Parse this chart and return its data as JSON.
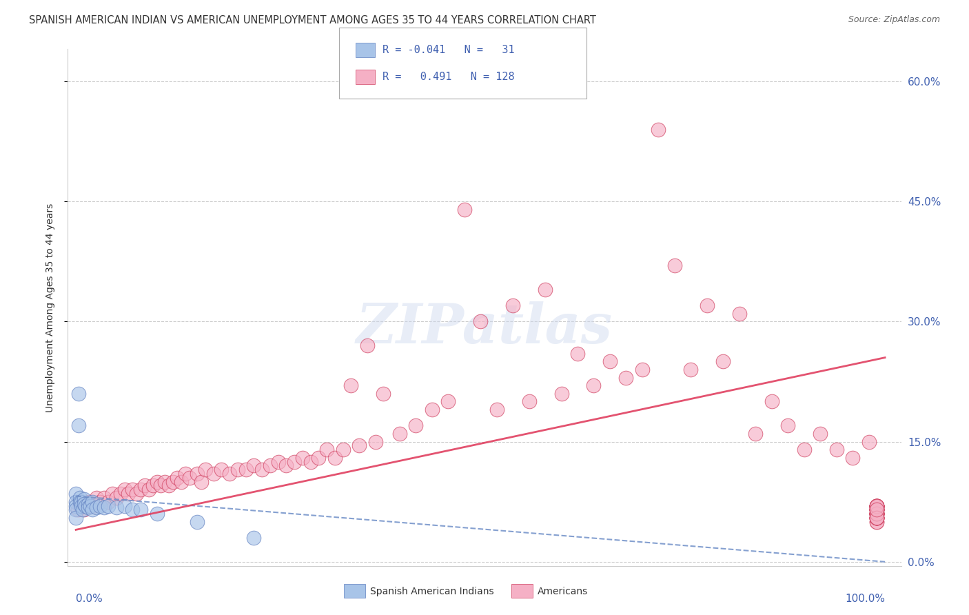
{
  "title": "SPANISH AMERICAN INDIAN VS AMERICAN UNEMPLOYMENT AMONG AGES 35 TO 44 YEARS CORRELATION CHART",
  "source": "Source: ZipAtlas.com",
  "ylabel": "Unemployment Among Ages 35 to 44 years",
  "ylabel_ticks": [
    "0.0%",
    "15.0%",
    "30.0%",
    "45.0%",
    "60.0%"
  ],
  "ylabel_tick_vals": [
    0.0,
    0.15,
    0.3,
    0.45,
    0.6
  ],
  "xlim": [
    -0.01,
    1.02
  ],
  "ylim": [
    -0.005,
    0.64
  ],
  "watermark": "ZIPatlas",
  "color_blue": "#a8c4e8",
  "color_pink": "#f5b0c5",
  "color_edge_blue": "#6080c0",
  "color_edge_pink": "#d04060",
  "color_line_blue": "#7090c8",
  "color_line_pink": "#e04060",
  "color_text_blue": "#4060b0",
  "title_color": "#333333",
  "source_color": "#666666",
  "blue_x": [
    0.003,
    0.003,
    0.0,
    0.0,
    0.0,
    0.0,
    0.0,
    0.005,
    0.005,
    0.007,
    0.007,
    0.008,
    0.01,
    0.01,
    0.012,
    0.015,
    0.015,
    0.018,
    0.02,
    0.02,
    0.025,
    0.03,
    0.035,
    0.04,
    0.05,
    0.06,
    0.07,
    0.08,
    0.1,
    0.15,
    0.22
  ],
  "blue_y": [
    0.21,
    0.17,
    0.085,
    0.075,
    0.07,
    0.065,
    0.055,
    0.08,
    0.075,
    0.075,
    0.07,
    0.065,
    0.078,
    0.072,
    0.07,
    0.072,
    0.068,
    0.07,
    0.075,
    0.065,
    0.068,
    0.07,
    0.068,
    0.07,
    0.068,
    0.07,
    0.065,
    0.065,
    0.06,
    0.05,
    0.03
  ],
  "pink_x": [
    0.002,
    0.005,
    0.01,
    0.015,
    0.02,
    0.025,
    0.03,
    0.035,
    0.04,
    0.045,
    0.05,
    0.055,
    0.06,
    0.065,
    0.07,
    0.075,
    0.08,
    0.085,
    0.09,
    0.095,
    0.1,
    0.105,
    0.11,
    0.115,
    0.12,
    0.125,
    0.13,
    0.135,
    0.14,
    0.15,
    0.155,
    0.16,
    0.17,
    0.18,
    0.19,
    0.2,
    0.21,
    0.22,
    0.23,
    0.24,
    0.25,
    0.26,
    0.27,
    0.28,
    0.29,
    0.3,
    0.31,
    0.32,
    0.33,
    0.34,
    0.35,
    0.36,
    0.37,
    0.38,
    0.4,
    0.42,
    0.44,
    0.46,
    0.48,
    0.5,
    0.52,
    0.54,
    0.56,
    0.58,
    0.6,
    0.62,
    0.64,
    0.66,
    0.68,
    0.7,
    0.72,
    0.74,
    0.76,
    0.78,
    0.8,
    0.82,
    0.84,
    0.86,
    0.88,
    0.9,
    0.92,
    0.94,
    0.96,
    0.98,
    0.99,
    0.99,
    0.99,
    0.99,
    0.99,
    0.99,
    0.99,
    0.99,
    0.99,
    0.99,
    0.99,
    0.99,
    0.99,
    0.99,
    0.99,
    0.99,
    0.99,
    0.99,
    0.99,
    0.99,
    0.99,
    0.99,
    0.99,
    0.99,
    0.99,
    0.99,
    0.99,
    0.99,
    0.99,
    0.99,
    0.99,
    0.99,
    0.99,
    0.99,
    0.99,
    0.99,
    0.99,
    0.99,
    0.99,
    0.99
  ],
  "pink_y": [
    0.065,
    0.07,
    0.065,
    0.075,
    0.07,
    0.08,
    0.075,
    0.08,
    0.075,
    0.085,
    0.08,
    0.085,
    0.09,
    0.085,
    0.09,
    0.085,
    0.09,
    0.095,
    0.09,
    0.095,
    0.1,
    0.095,
    0.1,
    0.095,
    0.1,
    0.105,
    0.1,
    0.11,
    0.105,
    0.11,
    0.1,
    0.115,
    0.11,
    0.115,
    0.11,
    0.115,
    0.115,
    0.12,
    0.115,
    0.12,
    0.125,
    0.12,
    0.125,
    0.13,
    0.125,
    0.13,
    0.14,
    0.13,
    0.14,
    0.22,
    0.145,
    0.27,
    0.15,
    0.21,
    0.16,
    0.17,
    0.19,
    0.2,
    0.44,
    0.3,
    0.19,
    0.32,
    0.2,
    0.34,
    0.21,
    0.26,
    0.22,
    0.25,
    0.23,
    0.24,
    0.54,
    0.37,
    0.24,
    0.32,
    0.25,
    0.31,
    0.16,
    0.2,
    0.17,
    0.14,
    0.16,
    0.14,
    0.13,
    0.15,
    0.07,
    0.06,
    0.07,
    0.05,
    0.06,
    0.07,
    0.05,
    0.065,
    0.06,
    0.07,
    0.055,
    0.065,
    0.06,
    0.07,
    0.055,
    0.065,
    0.06,
    0.07,
    0.055,
    0.065,
    0.06,
    0.07,
    0.055,
    0.065,
    0.06,
    0.07,
    0.055,
    0.065,
    0.06,
    0.07,
    0.055,
    0.065,
    0.06,
    0.07,
    0.055,
    0.065,
    0.06,
    0.07,
    0.055,
    0.065
  ],
  "blue_trend_x": [
    0.0,
    1.0
  ],
  "blue_trend_y": [
    0.082,
    0.0
  ],
  "pink_trend_x": [
    0.0,
    1.0
  ],
  "pink_trend_y": [
    0.04,
    0.255
  ]
}
